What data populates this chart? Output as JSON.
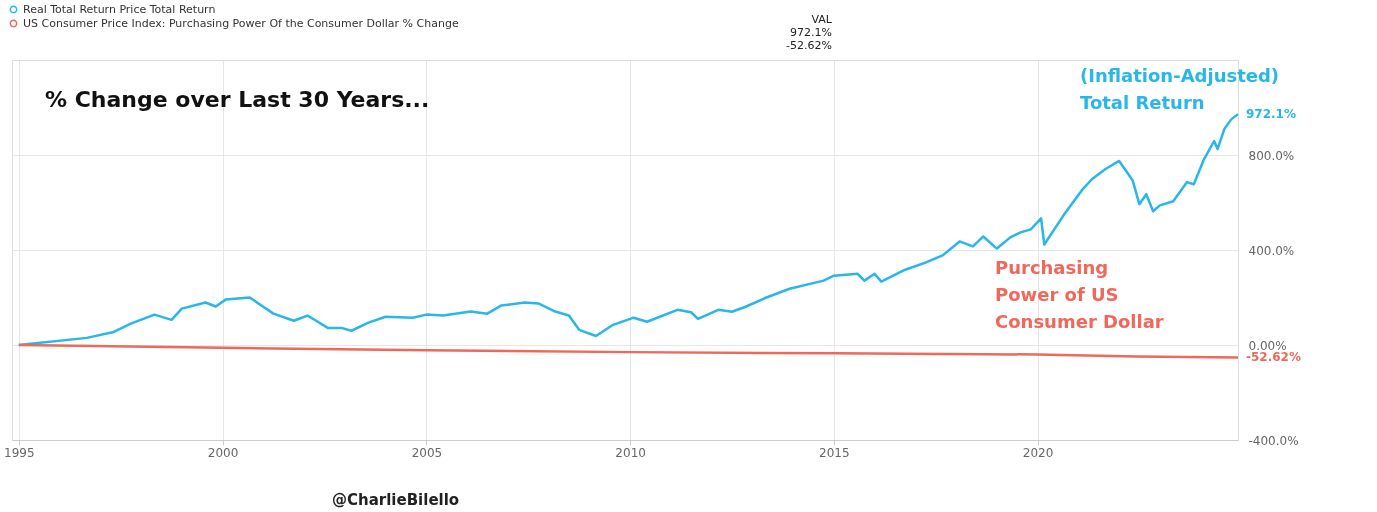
{
  "chart_data": {
    "type": "line",
    "title": "% Change over Last 30 Years...",
    "xlim": [
      "1994-11",
      "2024-12"
    ],
    "xticks": [
      "1995",
      "2000",
      "2005",
      "2010",
      "2015",
      "2020"
    ],
    "ylim": [
      -400,
      1200
    ],
    "yticks": [
      {
        "value": -400,
        "label": "-400.0%"
      },
      {
        "value": 0,
        "label": "0.00%"
      },
      {
        "value": 400,
        "label": "400.0%"
      },
      {
        "value": 800,
        "label": "800.0%"
      }
    ],
    "grid": true,
    "legend": "top left",
    "line_style": "solid",
    "marker": "none",
    "series": [
      {
        "name": "Real Total Return Price Total Return",
        "color": "#29b6e8",
        "x": [
          "1995-01",
          "1996-09",
          "1997-05",
          "1997-10",
          "1998-05",
          "1998-10",
          "1999-01",
          "1999-08",
          "1999-11",
          "2000-02",
          "2000-09",
          "2001-04",
          "2001-10",
          "2002-02",
          "2002-08",
          "2002-12",
          "2003-03",
          "2003-08",
          "2004-01",
          "2004-09",
          "2005-01",
          "2005-06",
          "2006-02",
          "2006-07",
          "2006-11",
          "2007-06",
          "2007-10",
          "2008-03",
          "2008-07",
          "2008-10",
          "2009-03",
          "2009-08",
          "2010-02",
          "2010-06",
          "2011-03",
          "2011-07",
          "2011-09",
          "2012-03",
          "2012-07",
          "2012-11",
          "2013-05",
          "2013-12",
          "2014-10",
          "2015-01",
          "2015-08",
          "2015-10",
          "2016-01",
          "2016-03",
          "2016-10",
          "2017-04",
          "2017-09",
          "2018-02",
          "2018-06",
          "2018-09",
          "2019-01",
          "2019-05",
          "2019-08",
          "2019-11",
          "2020-02",
          "2020-03",
          "2020-09",
          "2021-02",
          "2021-05",
          "2021-09",
          "2022-01",
          "2022-05",
          "2022-07",
          "2022-09",
          "2022-11",
          "2023-01",
          "2023-05",
          "2023-09",
          "2023-11",
          "2024-02",
          "2024-05",
          "2024-06",
          "2024-08",
          "2024-10",
          "2024-12"
        ],
        "values": [
          0,
          30,
          55,
          90,
          128,
          106,
          153,
          179,
          162,
          192,
          200,
          132,
          102,
          124,
          72,
          72,
          60,
          94,
          119,
          115,
          128,
          124,
          141,
          132,
          166,
          179,
          175,
          141,
          124,
          64,
          38,
          85,
          115,
          98,
          148,
          138,
          110,
          148,
          140,
          161,
          199,
          237,
          271,
          292,
          300,
          271,
          300,
          267,
          317,
          347,
          377,
          436,
          415,
          457,
          406,
          453,
          474,
          487,
          533,
          423,
          554,
          652,
          698,
          741,
          775,
          694,
          593,
          635,
          563,
          588,
          605,
          686,
          677,
          783,
          859,
          825,
          910,
          950,
          972.1
        ]
      },
      {
        "name": "US Consumer Price Index: Purchasing Power Of the Consumer Dollar % Change",
        "color": "#f0685a",
        "x": [
          "1995-01",
          "2000-01",
          "2005-01",
          "2010-01",
          "2015-01",
          "2020-01",
          "2022-06",
          "2024-12"
        ],
        "values": [
          0,
          -12,
          -22,
          -30,
          -35,
          -40,
          -48,
          -52.62
        ]
      }
    ],
    "annotations": [
      "(Inflation-Adjusted) Total Return",
      "Purchasing Power of US Consumer Dollar",
      {
        "text": "972.1%",
        "x": "2024-12",
        "y": 972.1
      },
      {
        "text": "-52.62%",
        "x": "2024-12",
        "y": -52.62
      },
      "VAL",
      "972.1%",
      "-52.62%",
      "@CharlieBilello"
    ]
  }
}
